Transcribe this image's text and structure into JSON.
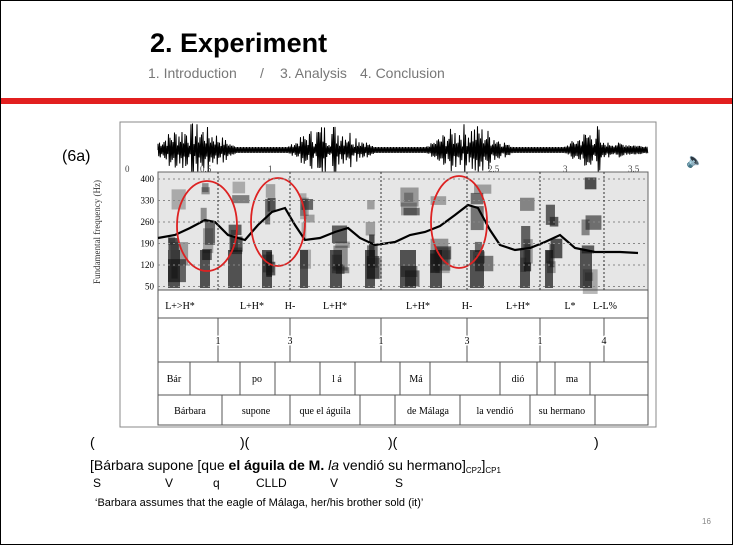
{
  "header": {
    "title": "2. Experiment",
    "nav": [
      "1. Introduction",
      "/",
      "3. Analysis",
      "4. Conclusion"
    ]
  },
  "example_label": "(6a)",
  "figure": {
    "y_axis_label": "Fundamental frequency (Hz)",
    "time_ticks": [
      "0",
      "0.5",
      "1",
      "2.5",
      "3",
      "3.5"
    ],
    "f0_ticks": [
      "400",
      "330",
      "260",
      "190",
      "120",
      "50"
    ],
    "tones": [
      "L+>H*",
      "L+H*",
      "H-",
      "L+H*",
      "L+H*",
      "H-",
      "L+H*",
      "L*",
      "L-L%"
    ],
    "break_indices": [
      "1",
      "3",
      "1",
      "3",
      "1",
      "4"
    ],
    "syllables": [
      "Bár",
      "po",
      "l á",
      "Má",
      "dió",
      "ma"
    ],
    "words": [
      "Bárbara",
      "supone",
      "que el águila",
      "de Málaga",
      "la vendió",
      "su hermano"
    ]
  },
  "brackets": [
    "(",
    ")(",
    ")(",
    ")"
  ],
  "sentence": {
    "part1": "[Bárbara supone [que ",
    "bold": "el águila de M.",
    "italic": "la",
    "part2": " vendió su hermano]",
    "sub1": "CP2",
    "part3": "]",
    "sub2": "CP1"
  },
  "gloss": [
    "S",
    "V",
    "q",
    "CLLD",
    "V",
    "S"
  ],
  "translation": "‘Barbara assumes that the eagle of Málaga, her/his brother sold (it)’",
  "page_number": "16"
}
